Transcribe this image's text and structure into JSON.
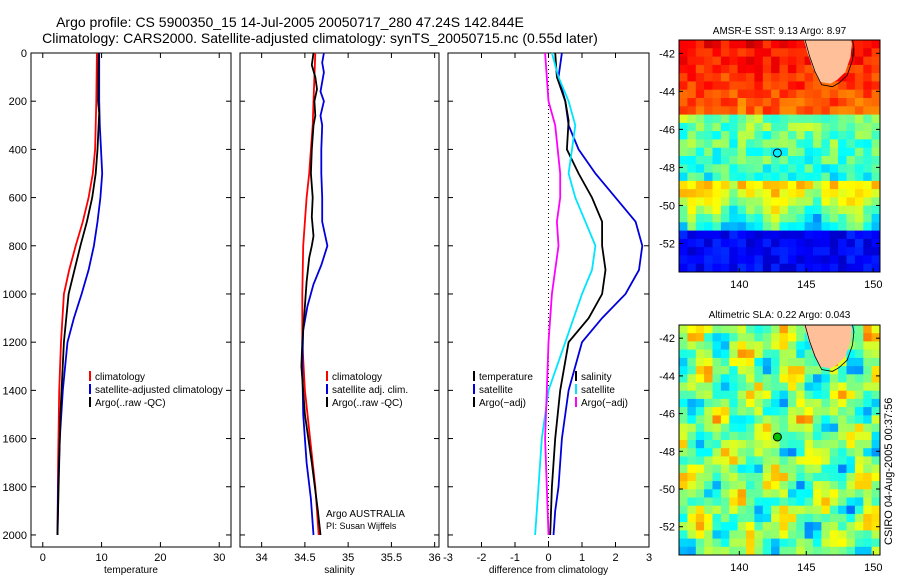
{
  "header": {
    "title_line1": "Argo profile: CS 5900350_15 14-Jul-2005 20050717_280 47.24S 142.844E",
    "title_line2": "Climatology: CARS2000. Satellite-adjusted climatology: synTS_20050715.nc (0.55d later)"
  },
  "side_text": "CSIRO 04-Aug-2005 00:37:56",
  "colors": {
    "red": "#ff0000",
    "blue": "#0000dd",
    "black": "#000000",
    "cyan": "#00e5ff",
    "magenta": "#ff00ff",
    "land": "#ffbf99"
  },
  "chart_data": [
    {
      "id": "temperature",
      "type": "line",
      "xlabel": "temperature",
      "xlim": [
        -2,
        32
      ],
      "ylim": [
        0,
        2050
      ],
      "xticks": [
        0,
        10,
        20,
        30
      ],
      "yticks": [
        0,
        200,
        400,
        600,
        800,
        1000,
        1200,
        1400,
        1600,
        1800,
        2000
      ],
      "legend": [
        "climatology",
        "satellite-adjusted climatology",
        "Argo(..raw -QC)"
      ],
      "series": [
        {
          "name": "climatology",
          "color": "red",
          "x": [
            9.2,
            9.1,
            8.9,
            8.5,
            7.8,
            6.8,
            5.6,
            4.5,
            3.6,
            3.1,
            2.8,
            2.6,
            2.5
          ],
          "y": [
            0,
            200,
            400,
            500,
            600,
            700,
            800,
            900,
            1000,
            1200,
            1400,
            1700,
            2000
          ]
        },
        {
          "name": "satellite-adjusted climatology",
          "color": "blue",
          "x": [
            9.6,
            9.6,
            9.7,
            10.1,
            9.8,
            9.3,
            8.7,
            7.8,
            6.6,
            5.3,
            4.2,
            3.4,
            2.9,
            2.6,
            2.5
          ],
          "y": [
            0,
            200,
            300,
            500,
            600,
            700,
            800,
            900,
            1000,
            1100,
            1200,
            1400,
            1600,
            1800,
            2000
          ]
        },
        {
          "name": "Argo(..raw -QC)",
          "color": "black",
          "x": [
            9.5,
            9.4,
            9.6,
            9.3,
            9.0,
            8.4,
            7.5,
            6.4,
            5.4,
            4.4,
            3.6,
            3.0,
            2.7,
            2.5
          ],
          "y": [
            0,
            200,
            250,
            400,
            500,
            600,
            700,
            800,
            900,
            1000,
            1200,
            1500,
            1800,
            2000
          ]
        }
      ]
    },
    {
      "id": "salinity",
      "type": "line",
      "xlabel": "salinity",
      "xlim": [
        33.75,
        36.05
      ],
      "ylim": [
        0,
        2050
      ],
      "xticks": [
        34,
        34.5,
        35,
        35.5,
        36
      ],
      "legend": [
        "climatology",
        "satellite adj. clim.",
        "Argo(..raw -QC)"
      ],
      "annotation": [
        "Argo AUSTRALIA",
        "PI: Susan Wijffels"
      ],
      "series": [
        {
          "name": "climatology",
          "color": "red",
          "x": [
            34.62,
            34.6,
            34.59,
            34.57,
            34.55,
            34.52,
            34.5,
            34.48,
            34.47,
            34.47,
            34.5,
            34.56,
            34.62,
            34.66
          ],
          "y": [
            0,
            200,
            300,
            400,
            500,
            600,
            700,
            800,
            1000,
            1200,
            1400,
            1600,
            1800,
            2000
          ]
        },
        {
          "name": "satellite adj. clim.",
          "color": "blue",
          "x": [
            34.72,
            34.7,
            34.72,
            34.68,
            34.72,
            34.68,
            34.7,
            34.69,
            34.69,
            34.7,
            34.7,
            34.76,
            34.69,
            34.6,
            34.53,
            34.48,
            34.47,
            34.48,
            34.52,
            34.57,
            34.6
          ],
          "y": [
            0,
            40,
            80,
            160,
            200,
            260,
            300,
            400,
            500,
            600,
            700,
            800,
            880,
            960,
            1050,
            1150,
            1300,
            1500,
            1700,
            1850,
            2000
          ]
        },
        {
          "name": "Argo(..raw -QC)",
          "color": "black",
          "x": [
            34.6,
            34.58,
            34.62,
            34.64,
            34.61,
            34.62,
            34.6,
            34.58,
            34.57,
            34.59,
            34.58,
            34.6,
            34.58,
            34.55,
            34.52,
            34.5,
            34.47,
            34.46,
            34.5,
            34.58,
            34.65,
            34.68
          ],
          "y": [
            0,
            50,
            100,
            150,
            200,
            260,
            300,
            400,
            500,
            600,
            680,
            760,
            800,
            850,
            950,
            1050,
            1200,
            1300,
            1500,
            1700,
            1900,
            2000
          ]
        }
      ]
    },
    {
      "id": "difference",
      "type": "line",
      "xlabel": "difference from climatology",
      "xlim": [
        -3,
        3
      ],
      "ylim": [
        0,
        2050
      ],
      "xticks": [
        -3,
        -2,
        -1,
        0,
        1,
        2,
        3
      ],
      "legend_left": [
        "temperature",
        "satellite",
        "Argo(−adj)"
      ],
      "legend_right": [
        "salinity",
        "satellite",
        "Argo(−adj)"
      ],
      "series": [
        {
          "name": "temperature satellite",
          "color": "blue",
          "x": [
            0.4,
            0.3,
            0.5,
            0.6,
            0.9,
            1.4,
            2.0,
            2.6,
            2.8,
            2.7,
            2.3,
            1.6,
            1.0,
            0.6,
            0.4,
            0.3,
            0.2,
            0.15
          ],
          "y": [
            0,
            100,
            200,
            300,
            400,
            500,
            600,
            700,
            800,
            900,
            1000,
            1100,
            1200,
            1400,
            1600,
            1800,
            1900,
            2000
          ]
        },
        {
          "name": "temperature Argo(-adj)",
          "color": "black",
          "x": [
            0.2,
            0.25,
            0.5,
            0.6,
            0.55,
            0.9,
            1.3,
            1.6,
            1.6,
            1.7,
            1.6,
            1.2,
            0.6,
            0.35,
            0.2,
            0.1,
            0.05
          ],
          "y": [
            0,
            100,
            200,
            280,
            400,
            500,
            600,
            700,
            800,
            900,
            1000,
            1100,
            1200,
            1400,
            1600,
            1800,
            2000
          ]
        },
        {
          "name": "salinity satellite",
          "color": "cyan",
          "x": [
            0.1,
            0.3,
            0.6,
            0.8,
            0.7,
            0.6,
            0.8,
            1.1,
            1.4,
            1.3,
            1.0,
            0.5,
            0.0,
            -0.2,
            -0.3,
            -0.4
          ],
          "y": [
            0,
            100,
            200,
            300,
            400,
            500,
            600,
            700,
            800,
            900,
            1000,
            1200,
            1400,
            1600,
            1800,
            2000
          ]
        },
        {
          "name": "salinity Argo(-adj)",
          "color": "magenta",
          "x": [
            -0.1,
            -0.05,
            0.0,
            0.2,
            0.35,
            0.35,
            0.25,
            0.3,
            0.2,
            0.1,
            0.0,
            -0.05,
            -0.1,
            -0.05,
            0.0
          ],
          "y": [
            0,
            100,
            200,
            300,
            500,
            600,
            700,
            800,
            900,
            1000,
            1200,
            1400,
            1600,
            1800,
            2000
          ]
        }
      ]
    },
    {
      "id": "sst-map",
      "type": "heatmap",
      "title": "AMSR-E SST: 9.13 Argo: 8.97",
      "xlim": [
        135.5,
        150.5
      ],
      "ylim": [
        -53.5,
        -41.3
      ],
      "xticks": [
        140,
        145,
        150
      ],
      "yticks": [
        -42,
        -44,
        -46,
        -48,
        -50,
        -52
      ],
      "marker": {
        "lon": 142.844,
        "lat": -47.24
      }
    },
    {
      "id": "sla-map",
      "type": "heatmap",
      "title": "Altimetric SLA: 0.22 Argo: 0.043",
      "xlim": [
        135.5,
        150.5
      ],
      "ylim": [
        -53.5,
        -41.3
      ],
      "xticks": [
        140,
        145,
        150
      ],
      "yticks": [
        -42,
        -44,
        -46,
        -48,
        -50,
        -52
      ],
      "marker": {
        "lon": 142.844,
        "lat": -47.24
      }
    }
  ]
}
